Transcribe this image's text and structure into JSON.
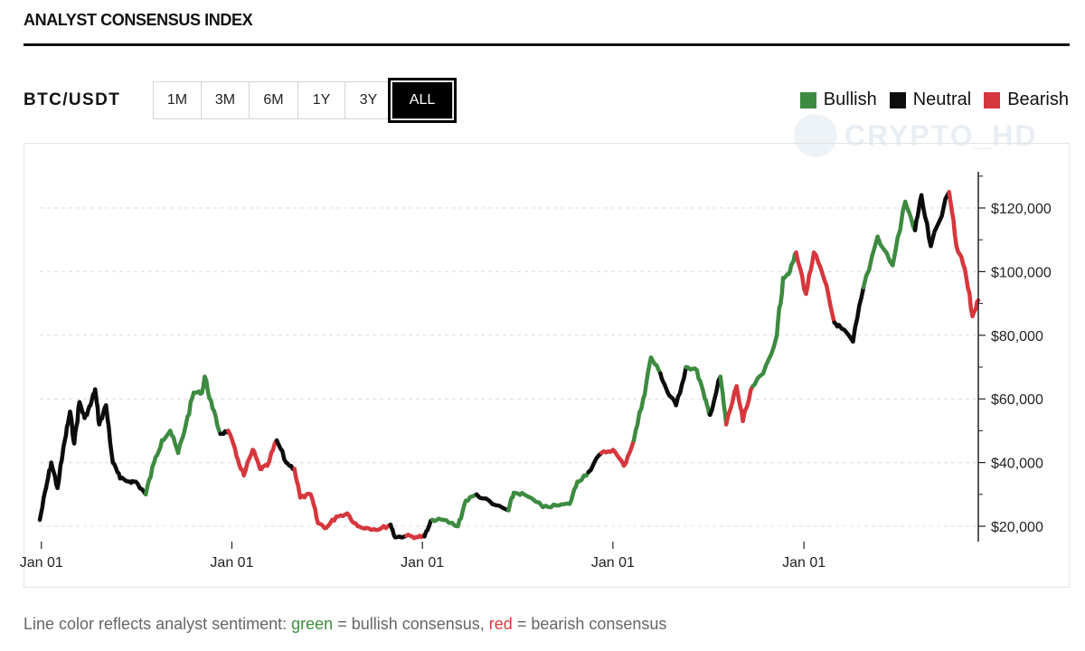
{
  "header": {
    "title": "ANALYST CONSENSUS INDEX"
  },
  "toolbar": {
    "pair": "BTC/USDT",
    "ranges": [
      "1M",
      "3M",
      "6M",
      "1Y",
      "3Y",
      "ALL"
    ],
    "active_range": "ALL"
  },
  "legend": [
    {
      "label": "Bullish",
      "color": "#3d8b40"
    },
    {
      "label": "Neutral",
      "color": "#0c0c0c"
    },
    {
      "label": "Bearish",
      "color": "#d6373d"
    }
  ],
  "watermark": {
    "text": "CRYPTO_HD",
    "icon": "telegram-icon"
  },
  "footnote": {
    "prefix": "Line color reflects analyst sentiment: ",
    "green_word": "green",
    "middle": " = bullish consensus, ",
    "red_word": "red",
    "suffix": " = bearish consensus"
  },
  "chart_data": {
    "type": "line",
    "title": "",
    "xlabel": "",
    "ylabel": "",
    "ylim": [
      15000,
      125000
    ],
    "y_axis_position": "right",
    "y_ticks": [
      20000,
      40000,
      60000,
      80000,
      100000,
      120000
    ],
    "y_tick_labels": [
      "$20,000",
      "$40,000",
      "$60,000",
      "$80,000",
      "$100,000",
      "$120,000"
    ],
    "x_tick_labels": [
      "Jan 01",
      "Jan 01",
      "Jan 01",
      "Jan 01",
      "Jan 01"
    ],
    "x_ticks": [
      "2021-01-01",
      "2022-01-01",
      "2023-01-01",
      "2024-01-01",
      "2025-01-01"
    ],
    "xlim": [
      "2020-12-29",
      "2025-12-01"
    ],
    "grid": "horizontal-dashed",
    "sentiment_colors": {
      "bullish": "#3d8b40",
      "neutral": "#0c0c0c",
      "bearish": "#d6373d"
    },
    "series": [
      {
        "points": [
          [
            "2020-12-29",
            22000,
            "neutral"
          ],
          [
            "2021-01-10",
            32000,
            "neutral"
          ],
          [
            "2021-01-20",
            40000,
            "neutral"
          ],
          [
            "2021-02-01",
            32000,
            "neutral"
          ],
          [
            "2021-02-15",
            47000,
            "neutral"
          ],
          [
            "2021-02-25",
            56000,
            "neutral"
          ],
          [
            "2021-03-05",
            46000,
            "neutral"
          ],
          [
            "2021-03-15",
            59000,
            "neutral"
          ],
          [
            "2021-03-25",
            54000,
            "neutral"
          ],
          [
            "2021-04-05",
            58000,
            "neutral"
          ],
          [
            "2021-04-14",
            63000,
            "neutral"
          ],
          [
            "2021-04-22",
            52000,
            "neutral"
          ],
          [
            "2021-05-05",
            58000,
            "neutral"
          ],
          [
            "2021-05-18",
            40000,
            "neutral"
          ],
          [
            "2021-06-01",
            35000,
            "neutral"
          ],
          [
            "2021-06-20",
            34000,
            "neutral"
          ],
          [
            "2021-07-01",
            34000,
            "neutral"
          ],
          [
            "2021-07-20",
            30000,
            "bullish"
          ],
          [
            "2021-08-05",
            40000,
            "bullish"
          ],
          [
            "2021-08-20",
            47000,
            "bullish"
          ],
          [
            "2021-09-05",
            50000,
            "bullish"
          ],
          [
            "2021-09-20",
            43000,
            "bullish"
          ],
          [
            "2021-10-05",
            52000,
            "bullish"
          ],
          [
            "2021-10-20",
            62000,
            "bullish"
          ],
          [
            "2021-11-05",
            62000,
            "bullish"
          ],
          [
            "2021-11-10",
            67000,
            "bullish"
          ],
          [
            "2021-11-25",
            57000,
            "bullish"
          ],
          [
            "2021-12-10",
            49000,
            "neutral"
          ],
          [
            "2021-12-25",
            50000,
            "bearish"
          ],
          [
            "2022-01-10",
            42000,
            "bearish"
          ],
          [
            "2022-01-24",
            36000,
            "bearish"
          ],
          [
            "2022-02-10",
            44000,
            "bearish"
          ],
          [
            "2022-02-24",
            38000,
            "bearish"
          ],
          [
            "2022-03-10",
            39000,
            "bearish"
          ],
          [
            "2022-03-28",
            47000,
            "neutral"
          ],
          [
            "2022-04-15",
            40000,
            "neutral"
          ],
          [
            "2022-05-01",
            38000,
            "bearish"
          ],
          [
            "2022-05-12",
            29000,
            "bearish"
          ],
          [
            "2022-06-01",
            30000,
            "bearish"
          ],
          [
            "2022-06-15",
            21000,
            "bearish"
          ],
          [
            "2022-07-01",
            19500,
            "bearish"
          ],
          [
            "2022-07-20",
            23000,
            "bearish"
          ],
          [
            "2022-08-10",
            24000,
            "bearish"
          ],
          [
            "2022-08-30",
            20000,
            "bearish"
          ],
          [
            "2022-09-15",
            19500,
            "bearish"
          ],
          [
            "2022-10-10",
            19000,
            "bearish"
          ],
          [
            "2022-11-01",
            20500,
            "neutral"
          ],
          [
            "2022-11-10",
            16500,
            "neutral"
          ],
          [
            "2022-12-01",
            17000,
            "bearish"
          ],
          [
            "2022-12-20",
            16600,
            "bearish"
          ],
          [
            "2023-01-05",
            16800,
            "neutral"
          ],
          [
            "2023-01-20",
            22000,
            "bullish"
          ],
          [
            "2023-02-10",
            22000,
            "bullish"
          ],
          [
            "2023-03-10",
            20000,
            "bullish"
          ],
          [
            "2023-03-25",
            28000,
            "bullish"
          ],
          [
            "2023-04-15",
            30000,
            "neutral"
          ],
          [
            "2023-05-15",
            27000,
            "neutral"
          ],
          [
            "2023-06-15",
            25000,
            "bullish"
          ],
          [
            "2023-06-25",
            30500,
            "bullish"
          ],
          [
            "2023-07-15",
            30000,
            "bullish"
          ],
          [
            "2023-08-20",
            26000,
            "bullish"
          ],
          [
            "2023-09-15",
            26500,
            "bullish"
          ],
          [
            "2023-10-10",
            27000,
            "bullish"
          ],
          [
            "2023-10-25",
            34000,
            "bullish"
          ],
          [
            "2023-11-15",
            37000,
            "neutral"
          ],
          [
            "2023-12-10",
            43000,
            "bearish"
          ],
          [
            "2024-01-01",
            44000,
            "bearish"
          ],
          [
            "2024-01-22",
            39000,
            "bearish"
          ],
          [
            "2024-02-10",
            47000,
            "bullish"
          ],
          [
            "2024-02-28",
            60000,
            "bullish"
          ],
          [
            "2024-03-14",
            73000,
            "bullish"
          ],
          [
            "2024-04-01",
            68000,
            "neutral"
          ],
          [
            "2024-04-15",
            62000,
            "neutral"
          ],
          [
            "2024-05-01",
            58000,
            "neutral"
          ],
          [
            "2024-05-20",
            70000,
            "bullish"
          ],
          [
            "2024-06-10",
            69000,
            "bullish"
          ],
          [
            "2024-06-25",
            60000,
            "bullish"
          ],
          [
            "2024-07-05",
            55000,
            "neutral"
          ],
          [
            "2024-07-25",
            67000,
            "bullish"
          ],
          [
            "2024-08-05",
            52000,
            "bearish"
          ],
          [
            "2024-08-25",
            64000,
            "bearish"
          ],
          [
            "2024-09-06",
            53000,
            "bearish"
          ],
          [
            "2024-09-25",
            64000,
            "bullish"
          ],
          [
            "2024-10-15",
            68000,
            "bullish"
          ],
          [
            "2024-11-10",
            80000,
            "bullish"
          ],
          [
            "2024-11-22",
            98000,
            "bullish"
          ],
          [
            "2024-12-05",
            100000,
            "bullish"
          ],
          [
            "2024-12-17",
            106000,
            "bearish"
          ],
          [
            "2025-01-05",
            93000,
            "bearish"
          ],
          [
            "2025-01-20",
            106000,
            "bearish"
          ],
          [
            "2025-02-10",
            97000,
            "bearish"
          ],
          [
            "2025-02-28",
            84000,
            "neutral"
          ],
          [
            "2025-03-15",
            82000,
            "neutral"
          ],
          [
            "2025-04-05",
            78000,
            "neutral"
          ],
          [
            "2025-04-25",
            95000,
            "bullish"
          ],
          [
            "2025-05-22",
            111000,
            "bullish"
          ],
          [
            "2025-06-20",
            102000,
            "bullish"
          ],
          [
            "2025-07-14",
            122000,
            "bullish"
          ],
          [
            "2025-08-02",
            113000,
            "neutral"
          ],
          [
            "2025-08-14",
            124000,
            "neutral"
          ],
          [
            "2025-09-01",
            108000,
            "neutral"
          ],
          [
            "2025-10-06",
            125000,
            "bearish"
          ],
          [
            "2025-10-20",
            108000,
            "bearish"
          ],
          [
            "2025-11-05",
            101000,
            "bearish"
          ],
          [
            "2025-11-20",
            86000,
            "bearish"
          ],
          [
            "2025-12-01",
            91000,
            "bearish"
          ]
        ]
      }
    ]
  }
}
